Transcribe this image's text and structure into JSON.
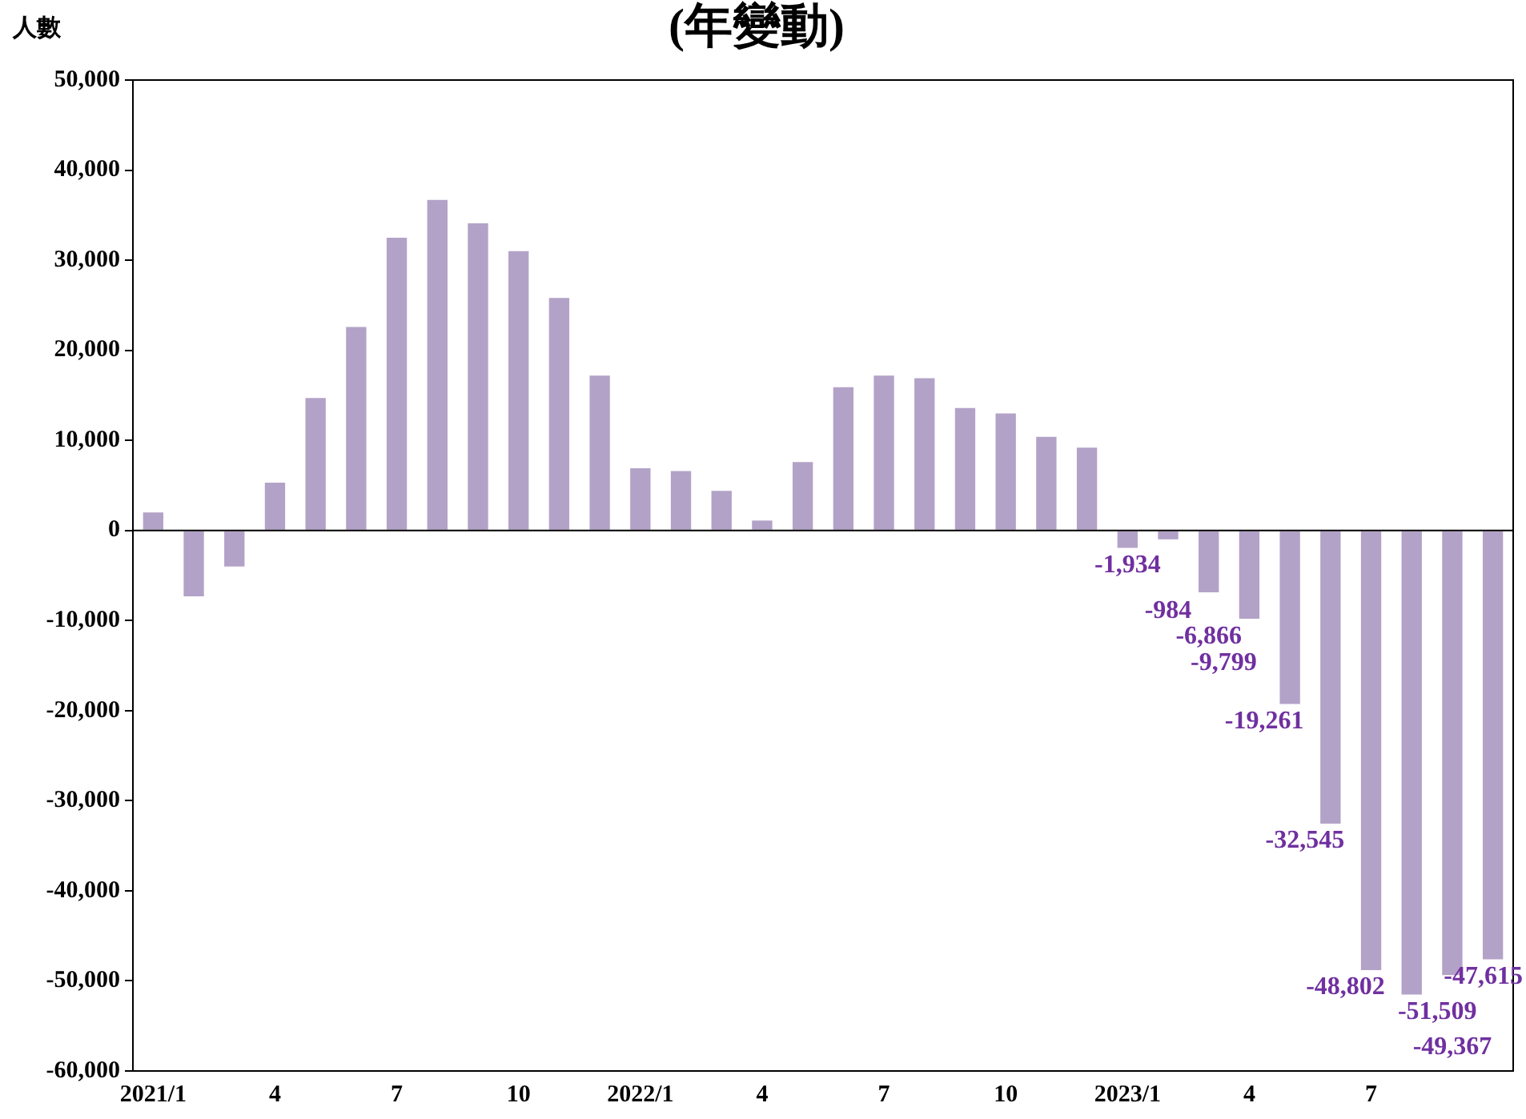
{
  "chart_data": {
    "type": "bar",
    "title": "(年變動)",
    "ylabel": "人數",
    "categories": [
      "2021/1",
      null,
      null,
      "4",
      null,
      null,
      "7",
      null,
      null,
      "10",
      null,
      null,
      "2022/1",
      null,
      null,
      "4",
      null,
      null,
      "7",
      null,
      null,
      "10",
      null,
      null,
      "2023/1",
      null,
      null,
      "4",
      null,
      null,
      "7",
      null,
      null,
      null
    ],
    "values": [
      2000,
      -7300,
      -4000,
      5300,
      14700,
      22600,
      32500,
      36700,
      34100,
      31000,
      25800,
      17200,
      6900,
      6600,
      4400,
      1100,
      7600,
      15900,
      17200,
      16900,
      13600,
      13000,
      10400,
      9200,
      -1934,
      -984,
      -6866,
      -9799,
      -19261,
      -32545,
      -48802,
      -51509,
      -49367,
      -47615
    ],
    "value_labels": [
      null,
      null,
      null,
      null,
      null,
      null,
      null,
      null,
      null,
      null,
      null,
      null,
      null,
      null,
      null,
      null,
      null,
      null,
      null,
      null,
      null,
      null,
      null,
      null,
      "-1,934",
      "-984",
      "-6,866",
      "-9,799",
      "-19,261",
      "-32,545",
      "-48,802",
      "-51,509",
      "-49,367",
      "-47,615"
    ],
    "color": "#b3a2c7",
    "ylim": [
      -60000,
      50000
    ],
    "yticks": [
      {
        "value": -60000,
        "label": "-60,000"
      },
      {
        "value": -50000,
        "label": "-50,000"
      },
      {
        "value": -40000,
        "label": "-40,000"
      },
      {
        "value": -30000,
        "label": "-30,000"
      },
      {
        "value": -20000,
        "label": "-20,000"
      },
      {
        "value": -10000,
        "label": "-10,000"
      },
      0,
      {
        "value": 10000,
        "label": "10,000"
      },
      {
        "value": 20000,
        "label": "20,000"
      },
      {
        "value": 30000,
        "label": "30,000"
      },
      {
        "value": 40000,
        "label": "40,000"
      },
      {
        "value": 50000,
        "label": "50,000"
      }
    ],
    "ref_lines": [
      {
        "axis": "y",
        "value": 0,
        "color": "#000000"
      }
    ],
    "grid": false,
    "legend": false
  }
}
